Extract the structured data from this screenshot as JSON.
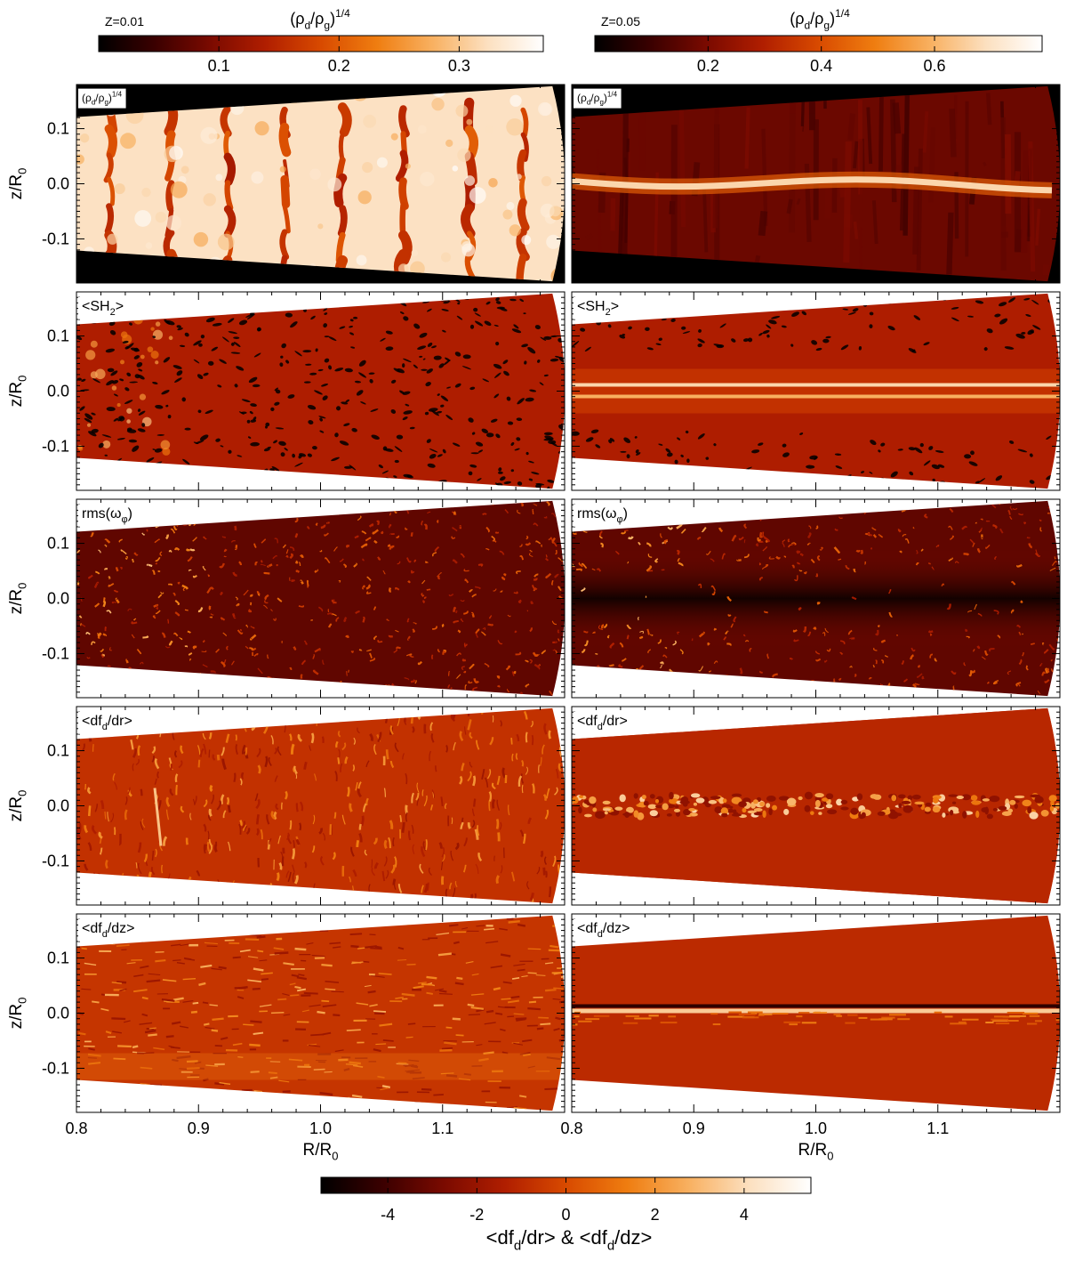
{
  "colors": {
    "cmap": [
      "#000000",
      "#3a0000",
      "#7a0a00",
      "#b01e00",
      "#d84a00",
      "#ef7d10",
      "#f8b060",
      "#fce0c0",
      "#ffffff"
    ],
    "mask": "#000000",
    "bg": "#ffffff"
  },
  "top_colorbars": [
    {
      "panel_label": "Z=0.01",
      "title": "(ρ_d/ρ_g)^1/4",
      "range": [
        0.0,
        0.37
      ],
      "ticks": [
        "0.1",
        "0.2",
        "0.3"
      ],
      "tick_values": [
        0.1,
        0.2,
        0.3
      ]
    },
    {
      "panel_label": "Z=0.05",
      "title": "(ρ_d/ρ_g)^1/4",
      "range": [
        0.0,
        0.79
      ],
      "ticks": [
        "0.2",
        "0.4",
        "0.6"
      ],
      "tick_values": [
        0.2,
        0.4,
        0.6
      ]
    }
  ],
  "bottom_colorbar": {
    "title": "<df_d/dr> & <df_d/dz>",
    "range": [
      -5.5,
      5.5
    ],
    "ticks": [
      "-4",
      "-2",
      "0",
      "2",
      "4"
    ],
    "tick_values": [
      -4,
      -2,
      0,
      2,
      4
    ]
  },
  "rows": [
    {
      "label": "(ρ_d/ρ_g)^1/4",
      "kind": "density"
    },
    {
      "label": "<SH_2>",
      "kind": "sh2"
    },
    {
      "label": "rms(ω_φ)",
      "kind": "vort"
    },
    {
      "label": "<df_d/dr>",
      "kind": "dfdr"
    },
    {
      "label": "<df_d/dz>",
      "kind": "dfdz"
    }
  ],
  "axes": {
    "ylabel": "z/R_0",
    "xlabel": "R/R_0",
    "yticks": [
      "0.1",
      "0.0",
      "-0.1"
    ],
    "ytick_values": [
      0.1,
      0.0,
      -0.1
    ],
    "xticks": [
      "0.8",
      "0.9",
      "1.0",
      "1.1"
    ],
    "xtick_values": [
      0.8,
      0.9,
      1.0,
      1.1
    ],
    "xlim": [
      0.8,
      1.2
    ],
    "ylim": [
      -0.18,
      0.18
    ]
  },
  "chart_data": {
    "type": "heatmap",
    "panels_grid": {
      "rows": 5,
      "columns": 2
    },
    "columns": [
      "Z=0.01",
      "Z=0.05"
    ],
    "rows": [
      "(ρ_d/ρ_g)^1/4",
      "<SH_2>",
      "rms(ω_φ)",
      "<df_d/dr>",
      "<df_d/dz>"
    ],
    "xlabel": "R/R_0",
    "ylabel": "z/R_0",
    "xlim": [
      0.8,
      1.2
    ],
    "ylim": [
      -0.18,
      0.18
    ],
    "xticks": [
      0.8,
      0.9,
      1.0,
      1.1
    ],
    "yticks": [
      -0.1,
      0.0,
      0.1
    ],
    "colorbars": [
      {
        "title": "(ρ_d/ρ_g)^1/4",
        "column": "Z=0.01",
        "range": [
          0.0,
          0.37
        ],
        "ticks": [
          0.1,
          0.2,
          0.3
        ]
      },
      {
        "title": "(ρ_d/ρ_g)^1/4",
        "column": "Z=0.05",
        "range": [
          0.0,
          0.79
        ],
        "ticks": [
          0.2,
          0.4,
          0.6
        ]
      },
      {
        "title": "<df_d/dr> & <df_d/dz>",
        "range": [
          -5.5,
          5.5
        ],
        "ticks": [
          -4,
          -2,
          0,
          2,
          4
        ]
      }
    ]
  }
}
